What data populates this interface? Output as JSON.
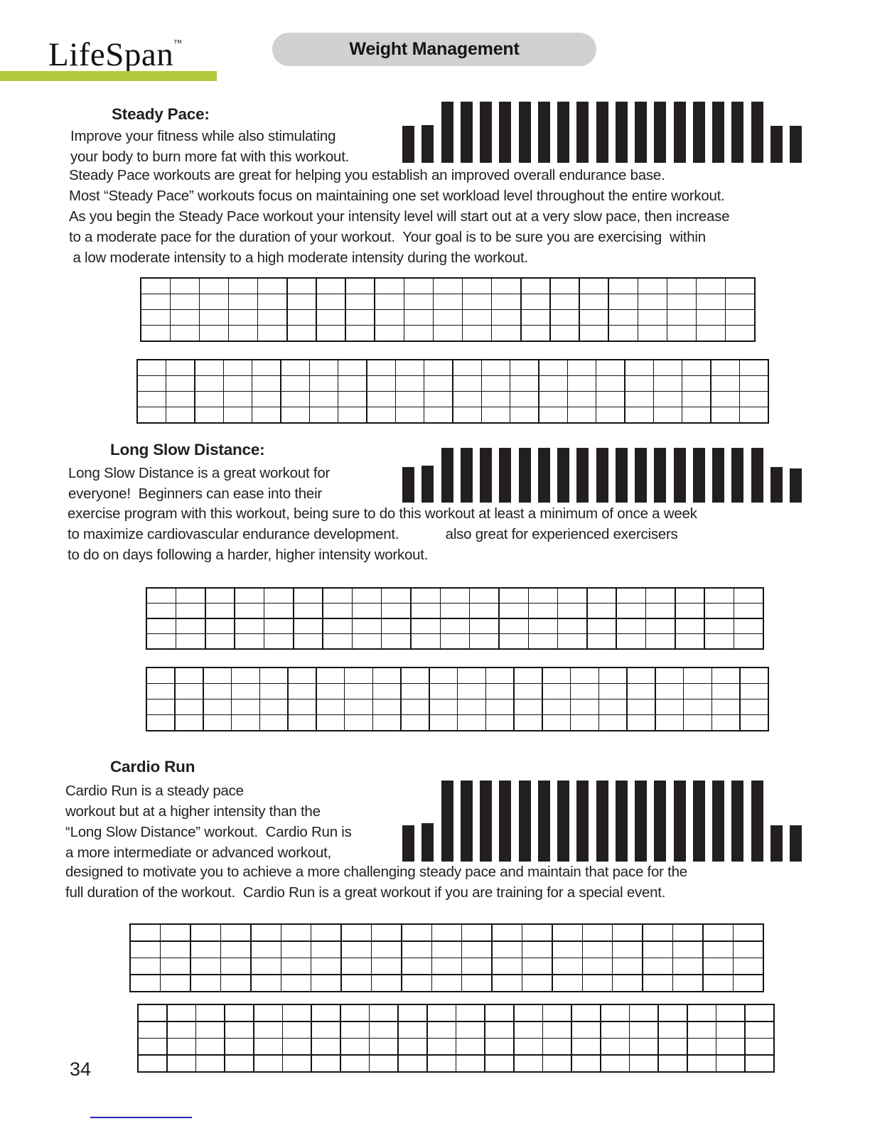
{
  "header": {
    "brand": "LifeSpan",
    "trademark": "™",
    "badge": "Weight Management"
  },
  "colors": {
    "accent_green": "#b4c83d",
    "badge_gray": "#d1d1cf",
    "bar_black": "#231f20",
    "text_black": "#231f20",
    "footer_blue": "#2b2bb0"
  },
  "sections": [
    {
      "id": "steady-pace",
      "heading": "Steady Pace:",
      "intro_lines": [
        "Improve your fitness while also stimulating",
        "your body to burn more fat with this workout."
      ],
      "body_lines": [
        "Steady Pace workouts are great for helping you establish an improved overall endurance base.",
        "Most “Steady Pace” workouts focus on maintaining one set workload level throughout the entire workout.",
        "As you begin the Steady Pace workout your intensity level will start out at a very slow pace, then increase",
        "to a moderate pace for the duration of your workout.  Your goal is to be sure you are exercising  within",
        " a low moderate intensity to a high moderate intensity during the workout."
      ],
      "chart": {
        "type": "bar",
        "description": "workout intensity profile",
        "bar_heights": [
          0.6,
          0.62,
          1,
          1,
          1,
          1,
          1,
          1,
          1,
          1,
          1,
          1,
          1,
          1,
          1,
          1,
          1,
          1,
          1,
          0.6,
          0.6
        ]
      },
      "tables": [
        {
          "cols": 21,
          "rows": 4
        },
        {
          "cols": 22,
          "rows": 4
        }
      ]
    },
    {
      "id": "long-slow-distance",
      "heading": "Long Slow Distance:",
      "intro_lines": [
        "Long Slow Distance is a great workout for",
        "everyone!  Beginners can ease into their"
      ],
      "body_lines": [
        "exercise program with this workout, being sure to do this workout at least a minimum of once a week",
        "to maximize cardiovascular endurance development.            also great for experienced exercisers",
        "to do on days following a harder, higher intensity workout."
      ],
      "chart": {
        "type": "bar",
        "description": "workout intensity profile",
        "bar_heights": [
          0.65,
          0.67,
          1,
          1,
          1,
          1,
          1,
          1,
          1,
          1,
          1,
          1,
          1,
          1,
          1,
          1,
          1,
          1,
          1,
          0.65,
          0.62
        ]
      },
      "tables": [
        {
          "cols": 21,
          "rows": 4
        },
        {
          "cols": 22,
          "rows": 4
        }
      ]
    },
    {
      "id": "cardio-run",
      "heading": "Cardio Run",
      "intro_lines": [
        "Cardio Run is a steady pace",
        "workout but at a higher intensity than the",
        "“Long Slow Distance” workout.  Cardio Run is",
        "a more intermediate or advanced workout,"
      ],
      "body_lines": [
        "designed to motivate you to achieve a more challenging steady pace and maintain that pace for the",
        "full duration of the workout.  Cardio Run is a great workout if you are training for a special event."
      ],
      "chart": {
        "type": "bar",
        "description": "workout intensity profile",
        "bar_heights": [
          0.45,
          0.47,
          1,
          1,
          1,
          1,
          1,
          1,
          1,
          1,
          1,
          1,
          1,
          1,
          1,
          1,
          1,
          1,
          1,
          0.45,
          0.45
        ]
      },
      "tables": [
        {
          "cols": 21,
          "rows": 4
        },
        {
          "cols": 22,
          "rows": 4
        }
      ]
    }
  ],
  "footer": {
    "page_number": "34"
  }
}
